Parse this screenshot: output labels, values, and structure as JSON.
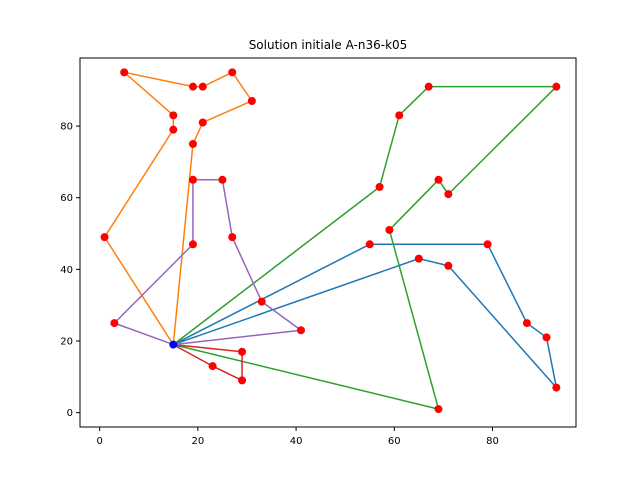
{
  "chart_data": {
    "type": "scatter",
    "title": "Solution initiale A-n36-k05",
    "xlabel": "",
    "ylabel": "",
    "xlim": [
      -4,
      97
    ],
    "ylim": [
      -4,
      99
    ],
    "x_ticks": [
      0,
      20,
      40,
      60,
      80
    ],
    "y_ticks": [
      0,
      20,
      40,
      60,
      80
    ],
    "grid": false,
    "depot": {
      "x": 15,
      "y": 19,
      "color": "#0000ff"
    },
    "customer_color": "#ff0000",
    "routes": [
      {
        "color": "#1f77b4",
        "points": [
          [
            15,
            19
          ],
          [
            55,
            47
          ],
          [
            79,
            47
          ],
          [
            87,
            25
          ],
          [
            91,
            21
          ],
          [
            93,
            7
          ],
          [
            71,
            41
          ],
          [
            65,
            43
          ],
          [
            15,
            19
          ]
        ]
      },
      {
        "color": "#ff7f0e",
        "points": [
          [
            15,
            19
          ],
          [
            1,
            49
          ],
          [
            15,
            79
          ],
          [
            15,
            83
          ],
          [
            5,
            95
          ],
          [
            19,
            91
          ],
          [
            21,
            91
          ],
          [
            27,
            95
          ],
          [
            31,
            87
          ],
          [
            21,
            81
          ],
          [
            19,
            75
          ],
          [
            15,
            19
          ]
        ]
      },
      {
        "color": "#2ca02c",
        "points": [
          [
            15,
            19
          ],
          [
            57,
            63
          ],
          [
            61,
            83
          ],
          [
            67,
            91
          ],
          [
            93,
            91
          ],
          [
            71,
            61
          ],
          [
            69,
            65
          ],
          [
            59,
            51
          ],
          [
            69,
            1
          ],
          [
            15,
            19
          ]
        ]
      },
      {
        "color": "#d62728",
        "points": [
          [
            15,
            19
          ],
          [
            29,
            17
          ],
          [
            29,
            9
          ],
          [
            23,
            13
          ],
          [
            15,
            19
          ]
        ]
      },
      {
        "color": "#9467bd",
        "points": [
          [
            15,
            19
          ],
          [
            41,
            23
          ],
          [
            33,
            31
          ],
          [
            27,
            49
          ],
          [
            25,
            65
          ],
          [
            19,
            65
          ],
          [
            19,
            47
          ],
          [
            3,
            25
          ],
          [
            15,
            19
          ]
        ]
      }
    ]
  }
}
